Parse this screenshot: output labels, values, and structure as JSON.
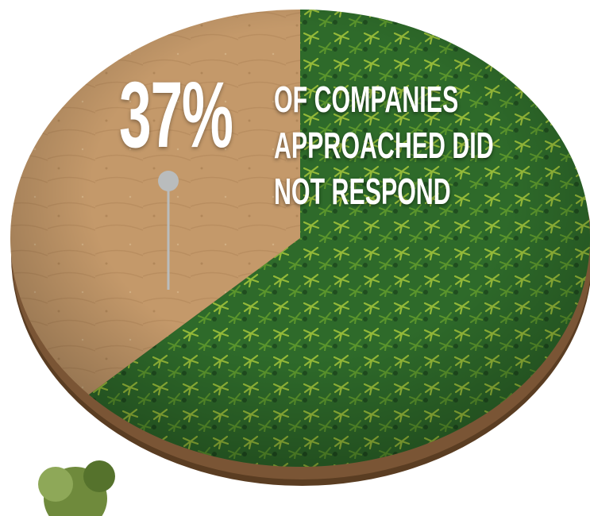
{
  "chart_data": {
    "type": "pie",
    "values": [
      37,
      63
    ],
    "value_labels": [
      "37%",
      null
    ],
    "colors": [
      "#c4996a",
      "#2e6a2a"
    ],
    "annotation": "OF COMPANIES APPROACHED DID NOT RESPOND"
  }
}
